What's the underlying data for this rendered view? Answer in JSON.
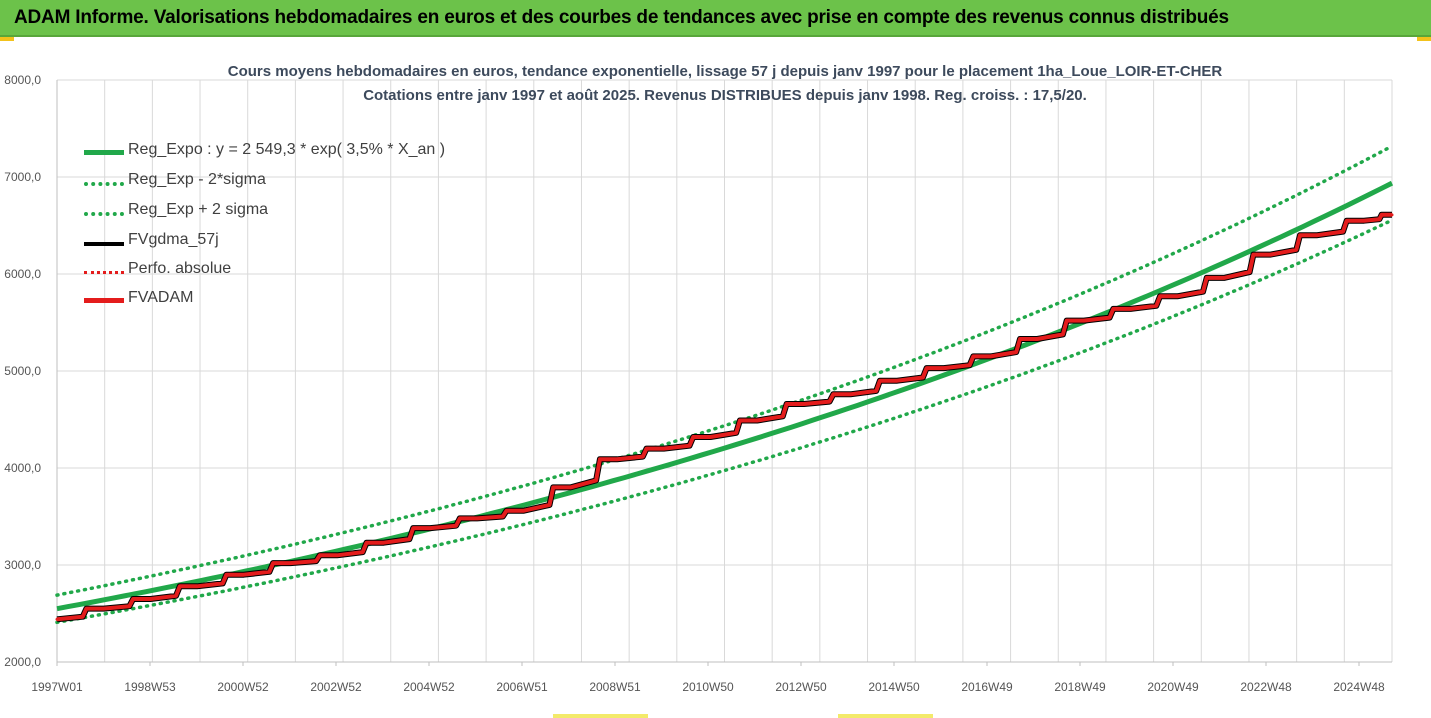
{
  "banner": {
    "title": "ADAM Informe. Valorisations hebdomadaires en euros et des courbes de tendances avec prise en compte des revenus connus distribués"
  },
  "colors": {
    "banner_bg": "#6cc24a",
    "trend": "#21a84a",
    "fv_adam": "#e41c1c",
    "fv_gdma": "#000000",
    "grid": "#d9d9d9"
  },
  "chart_data": {
    "type": "line",
    "title_line1": "Cours moyens hebdomadaires en euros, tendance exponentielle, lissage 57 j depuis janv 1997 pour le placement 1ha_Loue_LOIR-ET-CHER",
    "title_line2": "Cotations entre janv 1997 et août 2025. Revenus DISTRIBUES depuis janv 1998. Reg. croiss. : 17,5/20.",
    "xlabel": "",
    "ylabel": "",
    "ylim": [
      2000,
      8000
    ],
    "y_ticks": [
      "2000,0",
      "3000,0",
      "4000,0",
      "5000,0",
      "6000,0",
      "7000,0",
      "8000,0"
    ],
    "x_tick_labels": [
      "1997W01",
      "1998W53",
      "2000W52",
      "2002W52",
      "2004W52",
      "2006W51",
      "2008W51",
      "2010W50",
      "2012W50",
      "2014W50",
      "2016W49",
      "2018W49",
      "2020W49",
      "2022W48",
      "2024W48"
    ],
    "grid": true,
    "legend_position": "top-left",
    "legend": [
      "Reg_Expo : y = 2 549,3 * exp( 3,5% *  X_an )",
      "Reg_Exp - 2*sigma",
      "Reg_Exp + 2 sigma",
      "FVgdma_57j",
      "Perfo. absolue",
      "FVADAM"
    ],
    "regression": {
      "a": 2549.3,
      "rate": 0.035,
      "sigma_band_factor": 0.055
    },
    "x_years": [
      1997,
      1998,
      1999,
      2000,
      2001,
      2002,
      2003,
      2004,
      2005,
      2006,
      2007,
      2008,
      2009,
      2010,
      2011,
      2012,
      2013,
      2014,
      2015,
      2016,
      2017,
      2018,
      2019,
      2020,
      2021,
      2022,
      2023,
      2024,
      2025,
      2025.6
    ],
    "series": [
      {
        "name": "FVADAM",
        "values": [
          2440,
          2550,
          2650,
          2780,
          2900,
          3020,
          3100,
          3230,
          3380,
          3480,
          3560,
          3800,
          4090,
          4200,
          4320,
          4490,
          4660,
          4760,
          4900,
          5030,
          5150,
          5330,
          5520,
          5640,
          5770,
          5960,
          6200,
          6400,
          6550,
          6610
        ]
      },
      {
        "name": "FVgdma_57j",
        "values": [
          2440,
          2550,
          2650,
          2780,
          2900,
          3020,
          3100,
          3230,
          3380,
          3480,
          3560,
          3800,
          4090,
          4200,
          4320,
          4490,
          4660,
          4760,
          4900,
          5030,
          5150,
          5330,
          5520,
          5640,
          5770,
          5960,
          6200,
          6400,
          6550,
          6610
        ]
      }
    ]
  }
}
